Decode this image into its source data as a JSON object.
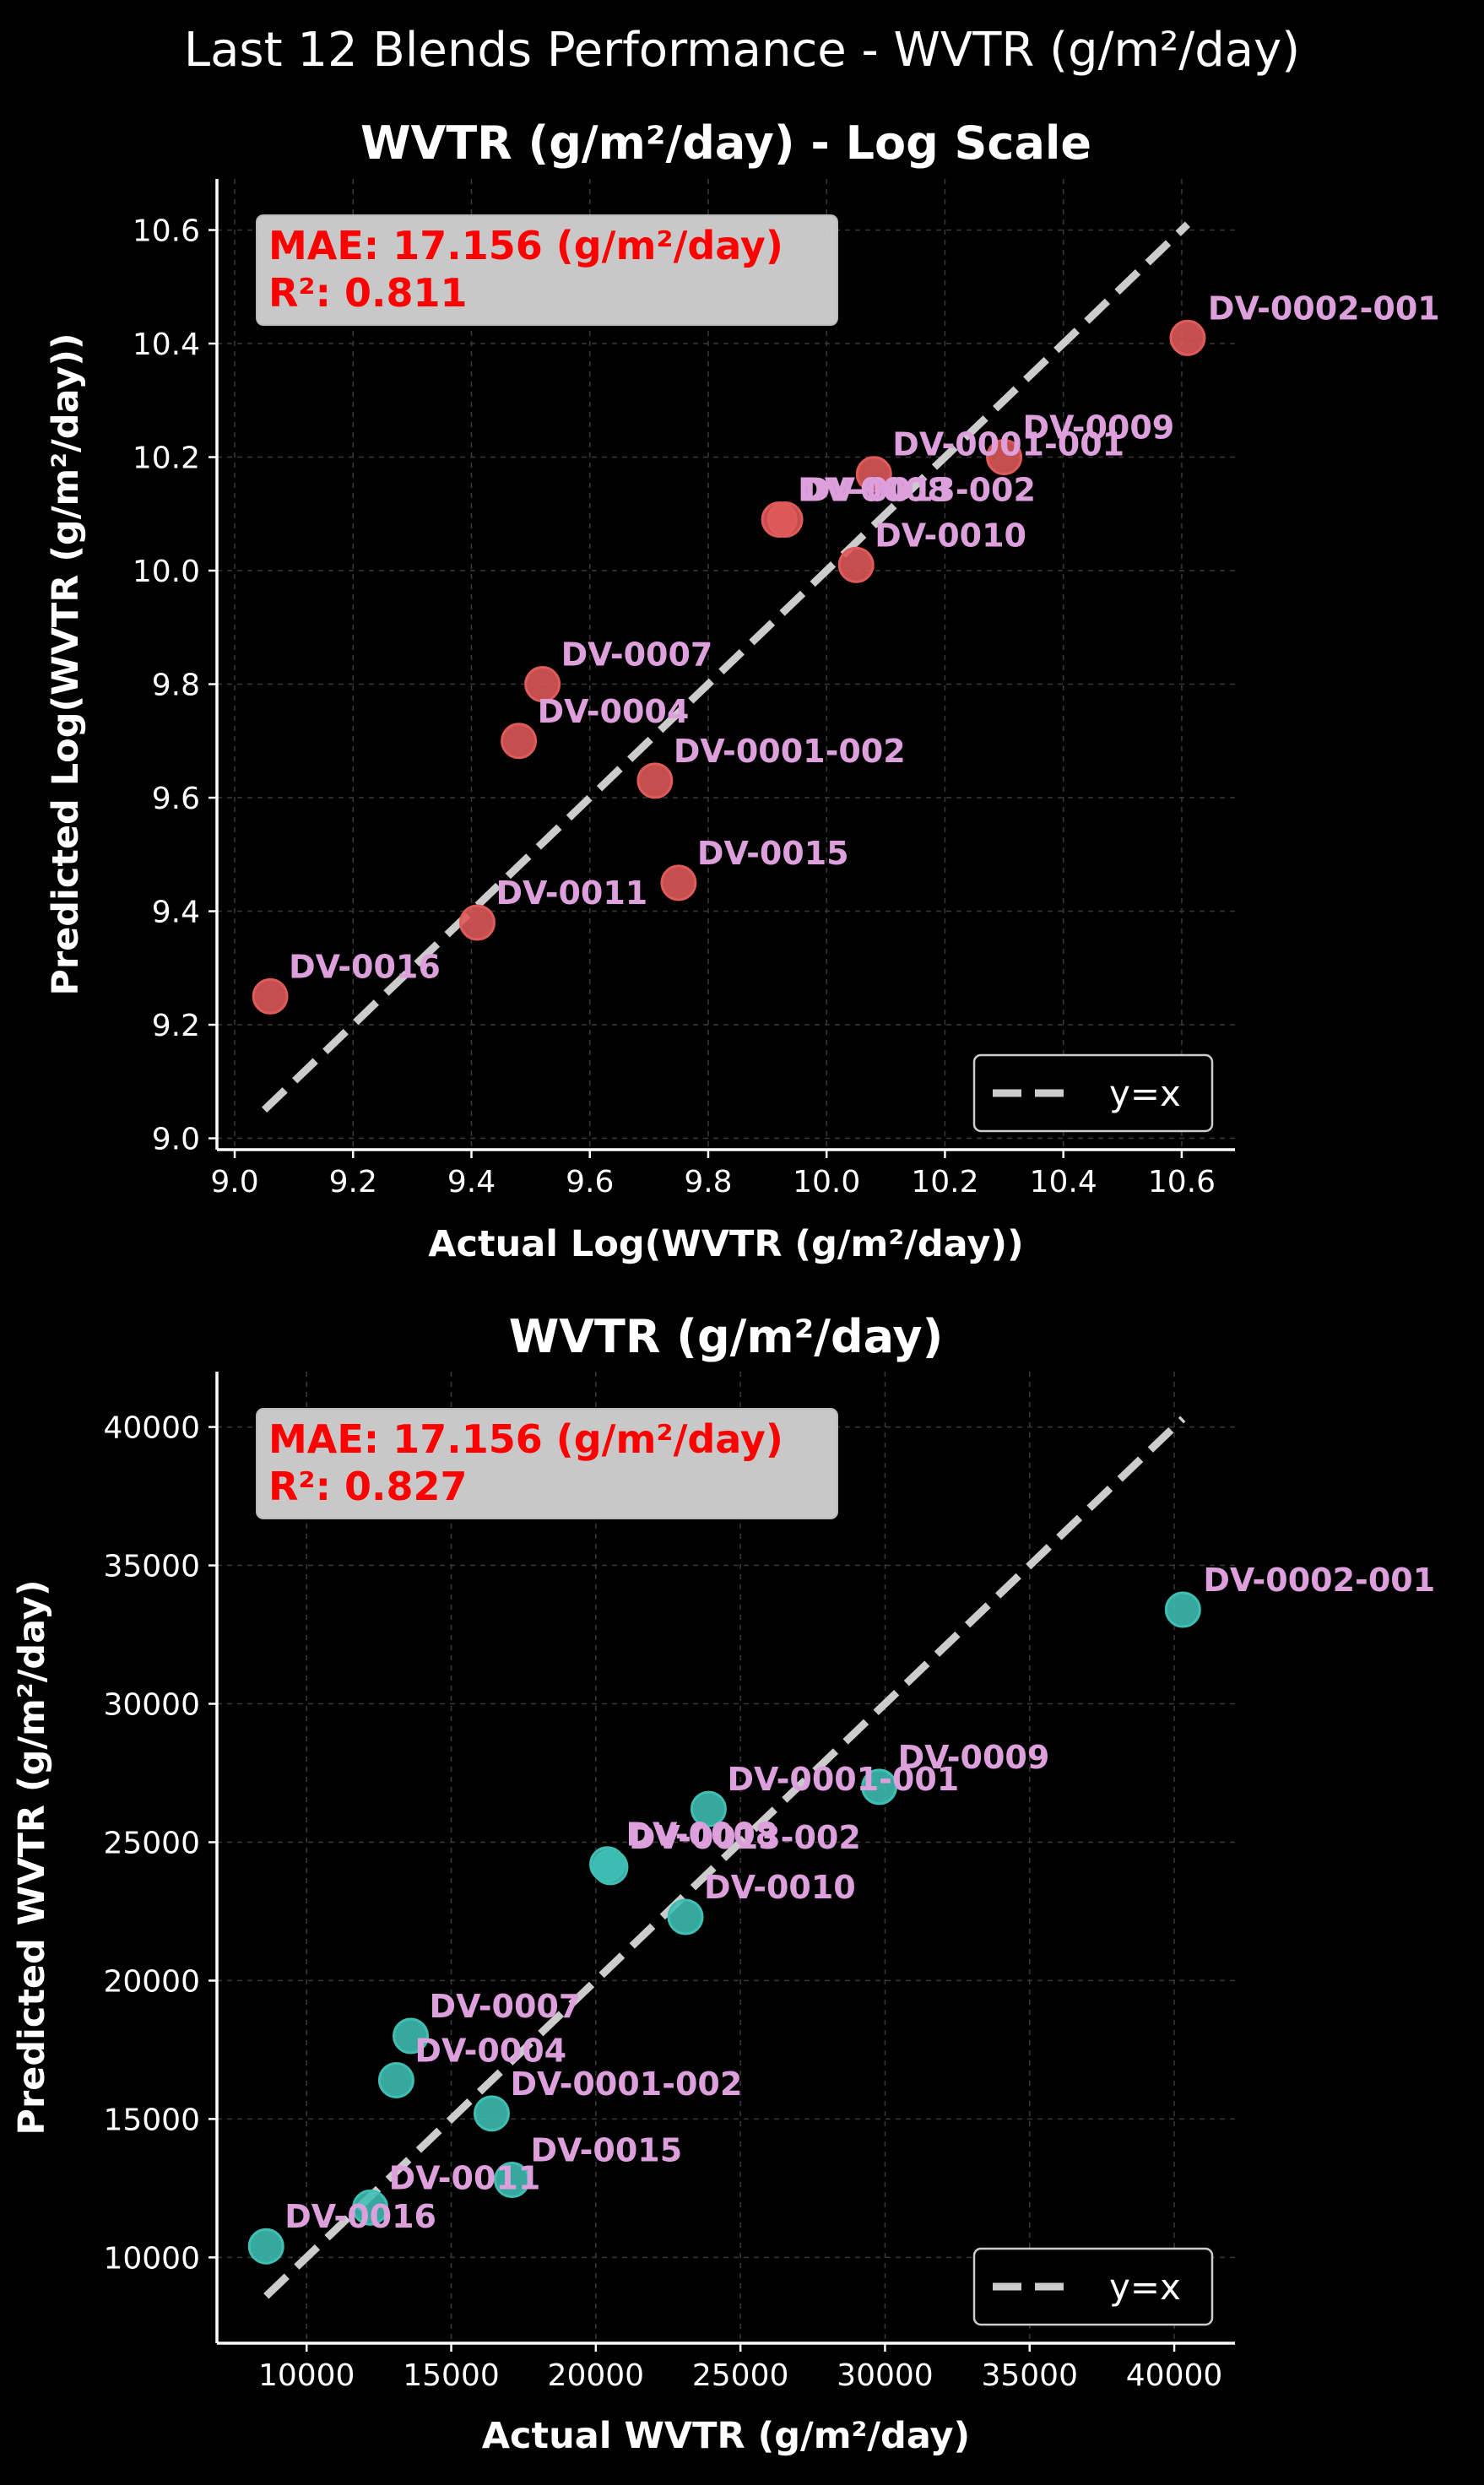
{
  "figure": {
    "suptitle": "Last 12 Blends Performance - WVTR (g/m²/day)",
    "background": "#000000"
  },
  "chart_data": [
    {
      "type": "scatter",
      "title": "WVTR (g/m²/day) - Log Scale",
      "xlabel": "Actual Log(WVTR (g/m²/day))",
      "ylabel": "Predicted Log(WVTR (g/m²/day))",
      "xlim": [
        8.97,
        10.69
      ],
      "ylim": [
        8.98,
        10.69
      ],
      "xticks": [
        9.0,
        9.2,
        9.4,
        9.6,
        9.8,
        10.0,
        10.2,
        10.4,
        10.6
      ],
      "yticks": [
        9.0,
        9.2,
        9.4,
        9.6,
        9.8,
        10.0,
        10.2,
        10.4,
        10.6
      ],
      "tick_format": "1dp",
      "grid": true,
      "point_color": "#e05a5a",
      "label_color": "#dda0dd",
      "metrics": [
        "MAE: 17.156 (g/m²/day)",
        "R²: 0.811"
      ],
      "metrics_color": "#ff0000",
      "reference_line": {
        "label": "y=x",
        "from": [
          9.05,
          9.05
        ],
        "to": [
          10.61,
          10.61
        ],
        "color": "#cccccc",
        "style": "dashed"
      },
      "legend": "lower-right",
      "points": [
        {
          "label": "DV-0002-001",
          "x": 10.61,
          "y": 10.41
        },
        {
          "label": "DV-0009",
          "x": 10.3,
          "y": 10.2
        },
        {
          "label": "DV-0001-001",
          "x": 10.08,
          "y": 10.17
        },
        {
          "label": "DV-0008",
          "x": 9.92,
          "y": 10.09
        },
        {
          "label": "DV-0013-002",
          "x": 9.93,
          "y": 10.09
        },
        {
          "label": "DV-0010",
          "x": 10.05,
          "y": 10.01
        },
        {
          "label": "DV-0007",
          "x": 9.52,
          "y": 9.8
        },
        {
          "label": "DV-0004",
          "x": 9.48,
          "y": 9.7
        },
        {
          "label": "DV-0001-002",
          "x": 9.71,
          "y": 9.63
        },
        {
          "label": "DV-0015",
          "x": 9.75,
          "y": 9.45
        },
        {
          "label": "DV-0011",
          "x": 9.41,
          "y": 9.38
        },
        {
          "label": "DV-0016",
          "x": 9.06,
          "y": 9.25
        }
      ]
    },
    {
      "type": "scatter",
      "title": "WVTR (g/m²/day)",
      "xlabel": "Actual WVTR (g/m²/day)",
      "ylabel": "Predicted WVTR (g/m²/day)",
      "xlim": [
        6900,
        42100
      ],
      "ylim": [
        6900,
        42000
      ],
      "xticks": [
        10000,
        15000,
        20000,
        25000,
        30000,
        35000,
        40000
      ],
      "yticks": [
        10000,
        15000,
        20000,
        25000,
        30000,
        35000,
        40000
      ],
      "tick_format": "int",
      "grid": true,
      "point_color": "#3fbfb4",
      "label_color": "#dda0dd",
      "metrics": [
        "MAE: 17.156 (g/m²/day)",
        "R²: 0.827"
      ],
      "metrics_color": "#ff0000",
      "reference_line": {
        "label": "y=x",
        "from": [
          8600,
          8600
        ],
        "to": [
          40300,
          40300
        ],
        "color": "#cccccc",
        "style": "dashed"
      },
      "legend": "lower-right",
      "points": [
        {
          "label": "DV-0002-001",
          "x": 40300,
          "y": 33400
        },
        {
          "label": "DV-0009",
          "x": 29800,
          "y": 27000
        },
        {
          "label": "DV-0001-001",
          "x": 23900,
          "y": 26200
        },
        {
          "label": "DV-0008",
          "x": 20400,
          "y": 24200
        },
        {
          "label": "DV-0013-002",
          "x": 20500,
          "y": 24100
        },
        {
          "label": "DV-0010",
          "x": 23100,
          "y": 22300
        },
        {
          "label": "DV-0007",
          "x": 13600,
          "y": 18000
        },
        {
          "label": "DV-0004",
          "x": 13100,
          "y": 16400
        },
        {
          "label": "DV-0001-002",
          "x": 16400,
          "y": 15200
        },
        {
          "label": "DV-0015",
          "x": 17100,
          "y": 12800
        },
        {
          "label": "DV-0011",
          "x": 12200,
          "y": 11800
        },
        {
          "label": "DV-0016",
          "x": 8600,
          "y": 10400
        }
      ]
    }
  ]
}
